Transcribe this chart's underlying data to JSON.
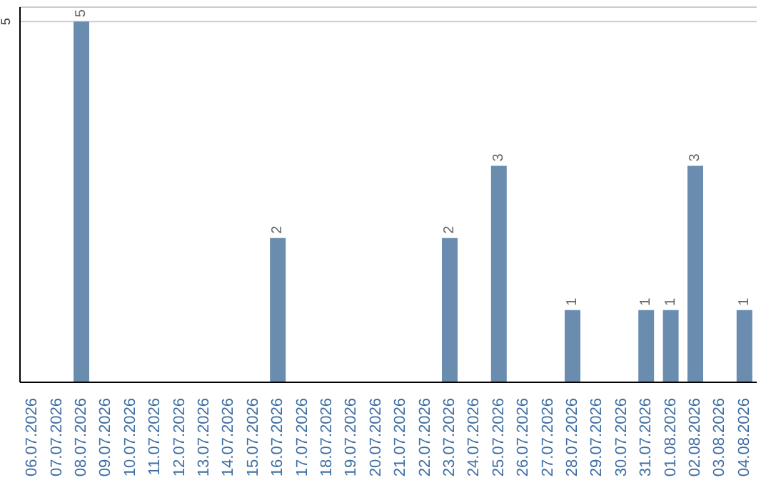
{
  "chart_data": {
    "type": "bar",
    "categories": [
      "06.07.2026",
      "07.07.2026",
      "08.07.2026",
      "09.07.2026",
      "10.07.2026",
      "11.07.2026",
      "12.07.2026",
      "13.07.2026",
      "14.07.2026",
      "15.07.2026",
      "16.07.2026",
      "17.07.2026",
      "18.07.2026",
      "19.07.2026",
      "20.07.2026",
      "21.07.2026",
      "22.07.2026",
      "23.07.2026",
      "24.07.2026",
      "25.07.2026",
      "26.07.2026",
      "27.07.2026",
      "28.07.2026",
      "29.07.2026",
      "30.07.2026",
      "31.07.2026",
      "01.08.2026",
      "02.08.2026",
      "03.08.2026",
      "04.08.2026"
    ],
    "values": [
      0,
      0,
      5,
      0,
      0,
      0,
      0,
      0,
      0,
      0,
      2,
      0,
      0,
      0,
      0,
      0,
      0,
      2,
      0,
      3,
      0,
      0,
      1,
      0,
      0,
      1,
      1,
      3,
      0,
      1
    ],
    "value_labels": [
      null,
      null,
      "5",
      null,
      null,
      null,
      null,
      null,
      null,
      null,
      "2",
      null,
      null,
      null,
      null,
      null,
      null,
      "2",
      null,
      "3",
      null,
      null,
      "1",
      null,
      null,
      "1",
      "1",
      "3",
      null,
      "1"
    ],
    "color": "#6a8caf",
    "ylim": [
      0,
      5.2
    ],
    "yticks": [
      5
    ],
    "grid": "y"
  }
}
